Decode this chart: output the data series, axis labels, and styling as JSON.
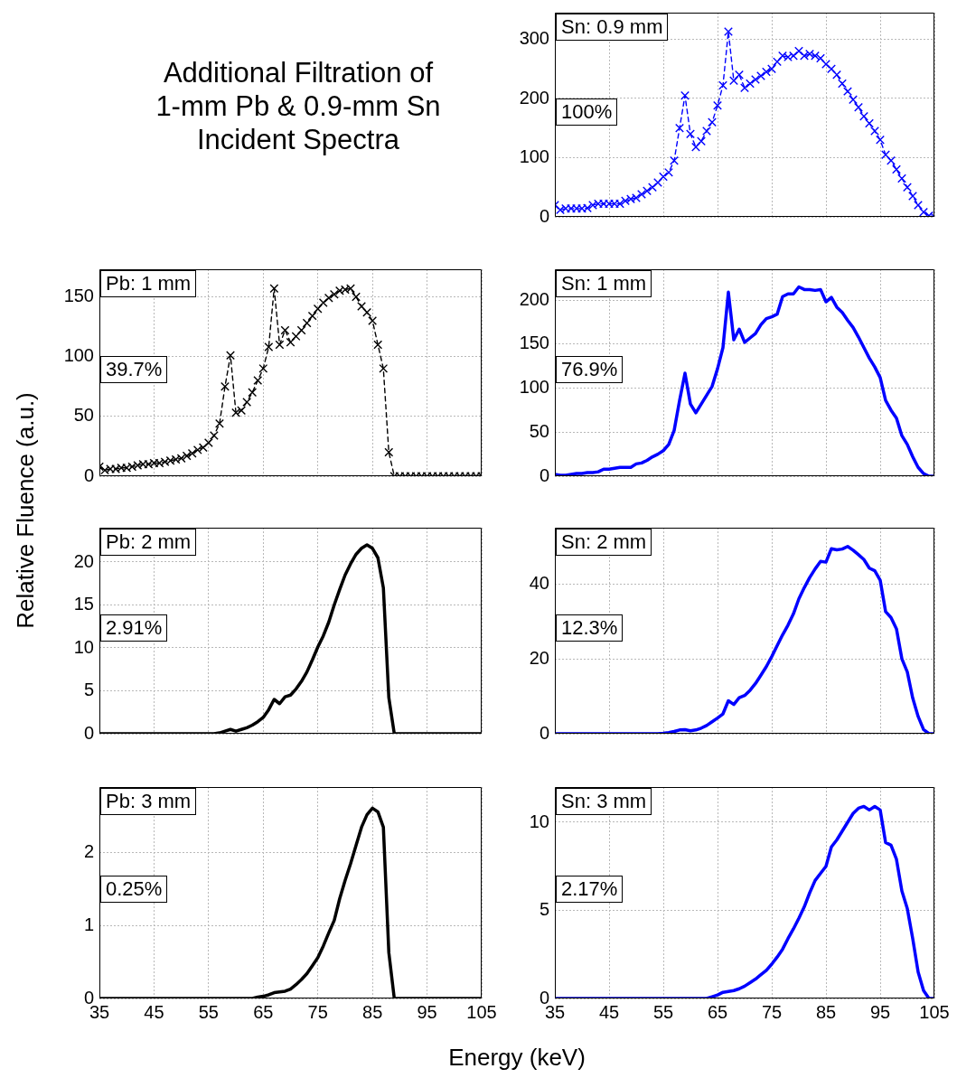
{
  "chart_data": [
    {
      "type": "other",
      "title": "Additional Filtration of\n1-mm Pb & 0.9-mm Sn\nIncident Spectra"
    },
    {
      "type": "line",
      "title": "Sn: 0.9 mm",
      "annotations": [
        "100%"
      ],
      "marker": "cross",
      "line_style": "dashed",
      "grid": true,
      "tick_labels": "y",
      "x": [
        35,
        36,
        37,
        38,
        39,
        40,
        41,
        42,
        43,
        44,
        45,
        46,
        47,
        48,
        49,
        50,
        51,
        52,
        53,
        54,
        55,
        56,
        57,
        58,
        59,
        60,
        61,
        62,
        63,
        64,
        65,
        66,
        67,
        68,
        69,
        70,
        71,
        72,
        73,
        74,
        75,
        76,
        77,
        78,
        79,
        80,
        81,
        82,
        83,
        84,
        85,
        86,
        87,
        88,
        89,
        90,
        91,
        92,
        93,
        94,
        95,
        96,
        97,
        98,
        99,
        100,
        101,
        102,
        103,
        104,
        105
      ],
      "series": [
        {
          "color": "#0000ff",
          "values": [
            20,
            12,
            14,
            14,
            14,
            14,
            15,
            20,
            22,
            22,
            22,
            22,
            22,
            27,
            30,
            32,
            38,
            44,
            50,
            58,
            68,
            75,
            95,
            150,
            205,
            140,
            118,
            128,
            145,
            160,
            188,
            222,
            313,
            230,
            240,
            218,
            225,
            232,
            238,
            245,
            250,
            262,
            272,
            270,
            272,
            280,
            272,
            275,
            272,
            268,
            258,
            250,
            240,
            225,
            212,
            198,
            185,
            170,
            158,
            145,
            130,
            105,
            95,
            80,
            65,
            50,
            35,
            20,
            8,
            2,
            0
          ]
        }
      ],
      "xlim": [
        35,
        105
      ],
      "xticks": [
        35,
        45,
        55,
        65,
        75,
        85,
        95,
        105
      ],
      "ylim": [
        0,
        345
      ],
      "yticks": [
        0,
        100,
        200,
        300
      ]
    },
    {
      "type": "line",
      "title": "Pb: 1 mm",
      "annotations": [
        "39.7%"
      ],
      "marker": "cross",
      "line_style": "dashed",
      "grid": true,
      "tick_labels": "y",
      "x": [
        35,
        36,
        37,
        38,
        39,
        40,
        41,
        42,
        43,
        44,
        45,
        46,
        47,
        48,
        49,
        50,
        51,
        52,
        53,
        54,
        55,
        56,
        57,
        58,
        59,
        60,
        61,
        62,
        63,
        64,
        65,
        66,
        67,
        68,
        69,
        70,
        71,
        72,
        73,
        74,
        75,
        76,
        77,
        78,
        79,
        80,
        81,
        82,
        83,
        84,
        85,
        86,
        87,
        88,
        89,
        90,
        91,
        92,
        93,
        94,
        95,
        96,
        97,
        98,
        99,
        100,
        101,
        102,
        103,
        104,
        105
      ],
      "series": [
        {
          "color": "#000000",
          "values": [
            8,
            5,
            6,
            6,
            7,
            7,
            8,
            9,
            10,
            10,
            11,
            11,
            12,
            13,
            14,
            15,
            17,
            19,
            22,
            24,
            28,
            34,
            44,
            75,
            101,
            53,
            55,
            62,
            70,
            80,
            90,
            108,
            157,
            110,
            122,
            112,
            117,
            122,
            128,
            134,
            140,
            145,
            149,
            152,
            155,
            156,
            157,
            150,
            142,
            137,
            130,
            110,
            90,
            20,
            0,
            0,
            0,
            0,
            0,
            0,
            0,
            0,
            0,
            0,
            0,
            0,
            0,
            0,
            0,
            0,
            0
          ]
        }
      ],
      "xlim": [
        35,
        105
      ],
      "xticks": [
        35,
        45,
        55,
        65,
        75,
        85,
        95,
        105
      ],
      "ylim": [
        0,
        173
      ],
      "yticks": [
        0,
        50,
        100,
        150
      ]
    },
    {
      "type": "line",
      "title": "Sn: 1 mm",
      "annotations": [
        "76.9%"
      ],
      "line_style": "solid",
      "grid": true,
      "tick_labels": "y",
      "x": [
        35,
        36,
        37,
        38,
        39,
        40,
        41,
        42,
        43,
        44,
        45,
        46,
        47,
        48,
        49,
        50,
        51,
        52,
        53,
        54,
        55,
        56,
        57,
        58,
        59,
        60,
        61,
        62,
        63,
        64,
        65,
        66,
        67,
        68,
        69,
        70,
        71,
        72,
        73,
        74,
        75,
        76,
        77,
        78,
        79,
        80,
        81,
        82,
        83,
        84,
        85,
        86,
        87,
        88,
        89,
        90,
        91,
        92,
        93,
        94,
        95,
        96,
        97,
        98,
        99,
        100,
        101,
        102,
        103,
        104,
        105
      ],
      "series": [
        {
          "color": "#0000ff",
          "values": [
            2,
            1,
            1,
            2,
            3,
            3,
            4,
            4,
            5,
            8,
            8,
            9,
            10,
            10,
            10,
            14,
            15,
            18,
            22,
            25,
            29,
            36,
            52,
            86,
            117,
            82,
            72,
            82,
            92,
            102,
            122,
            146,
            209,
            155,
            167,
            152,
            157,
            162,
            172,
            179,
            181,
            184,
            204,
            207,
            207,
            215,
            212,
            212,
            211,
            212,
            198,
            203,
            192,
            186,
            177,
            169,
            158,
            146,
            134,
            124,
            112,
            86,
            75,
            66,
            46,
            36,
            22,
            10,
            3,
            0,
            0
          ]
        }
      ],
      "xlim": [
        35,
        105
      ],
      "xticks": [
        35,
        45,
        55,
        65,
        75,
        85,
        95,
        105
      ],
      "ylim": [
        0,
        235
      ],
      "yticks": [
        0,
        50,
        100,
        150,
        200
      ]
    },
    {
      "type": "line",
      "title": "Pb: 2 mm",
      "annotations": [
        "2.91%"
      ],
      "ylabel": "Relative Fluence (a.u.)",
      "line_style": "solid",
      "grid": true,
      "tick_labels": "y",
      "x": [
        35,
        36,
        37,
        38,
        39,
        40,
        41,
        42,
        43,
        44,
        45,
        46,
        47,
        48,
        49,
        50,
        51,
        52,
        53,
        54,
        55,
        56,
        57,
        58,
        59,
        60,
        61,
        62,
        63,
        64,
        65,
        66,
        67,
        68,
        69,
        70,
        71,
        72,
        73,
        74,
        75,
        76,
        77,
        78,
        79,
        80,
        81,
        82,
        83,
        84,
        85,
        86,
        87,
        88,
        89,
        90,
        91,
        92,
        93,
        94,
        95,
        96,
        97,
        98,
        99,
        100,
        101,
        102,
        103,
        104,
        105
      ],
      "series": [
        {
          "color": "#000000",
          "values": [
            0,
            0,
            0,
            0,
            0,
            0,
            0,
            0,
            0,
            0,
            0,
            0,
            0,
            0,
            0,
            0,
            0,
            0,
            0,
            0,
            0,
            0,
            0.1,
            0.3,
            0.5,
            0.3,
            0.5,
            0.7,
            1.0,
            1.4,
            1.9,
            2.8,
            4.0,
            3.5,
            4.3,
            4.5,
            5.2,
            6.1,
            7.2,
            8.6,
            10.1,
            11.4,
            13,
            15,
            16.8,
            18.5,
            19.8,
            20.9,
            21.6,
            22,
            21.6,
            20.5,
            17,
            4.2,
            0,
            0,
            0,
            0,
            0,
            0,
            0,
            0,
            0,
            0,
            0,
            0,
            0,
            0,
            0,
            0,
            0
          ]
        }
      ],
      "xlim": [
        35,
        105
      ],
      "xticks": [
        35,
        45,
        55,
        65,
        75,
        85,
        95,
        105
      ],
      "ylim": [
        0,
        24
      ],
      "yticks": [
        0,
        5,
        10,
        15,
        20
      ]
    },
    {
      "type": "line",
      "title": "Sn: 2 mm",
      "annotations": [
        "12.3%"
      ],
      "line_style": "solid",
      "grid": true,
      "tick_labels": "y",
      "x": [
        35,
        36,
        37,
        38,
        39,
        40,
        41,
        42,
        43,
        44,
        45,
        46,
        47,
        48,
        49,
        50,
        51,
        52,
        53,
        54,
        55,
        56,
        57,
        58,
        59,
        60,
        61,
        62,
        63,
        64,
        65,
        66,
        67,
        68,
        69,
        70,
        71,
        72,
        73,
        74,
        75,
        76,
        77,
        78,
        79,
        80,
        81,
        82,
        83,
        84,
        85,
        86,
        87,
        88,
        89,
        90,
        91,
        92,
        93,
        94,
        95,
        96,
        97,
        98,
        99,
        100,
        101,
        102,
        103,
        104,
        105
      ],
      "series": [
        {
          "color": "#0000ff",
          "values": [
            0,
            0,
            0,
            0,
            0,
            0,
            0,
            0,
            0,
            0,
            0,
            0,
            0,
            0,
            0,
            0,
            0,
            0,
            0,
            0,
            0.1,
            0.3,
            0.6,
            1.0,
            1.1,
            0.8,
            1.0,
            1.5,
            2.2,
            3.2,
            4.2,
            5.3,
            8.8,
            7.8,
            9.6,
            10.2,
            11.6,
            13.4,
            15.6,
            17.9,
            20.6,
            23.5,
            26.4,
            29,
            32,
            36,
            39,
            41.7,
            44,
            46,
            45.8,
            49.4,
            49.1,
            49.3,
            50,
            49,
            47.8,
            46.5,
            44.2,
            43.5,
            41,
            32.6,
            31,
            28,
            20,
            16.5,
            9.5,
            4.6,
            1.1,
            0,
            0
          ]
        }
      ],
      "xlim": [
        35,
        105
      ],
      "xticks": [
        35,
        45,
        55,
        65,
        75,
        85,
        95,
        105
      ],
      "ylim": [
        0,
        55
      ],
      "yticks": [
        0,
        20,
        40
      ]
    },
    {
      "type": "line",
      "title": "Pb: 3 mm",
      "annotations": [
        "0.25%"
      ],
      "xlabel": "Energy (keV)",
      "line_style": "solid",
      "grid": true,
      "x": [
        35,
        36,
        37,
        38,
        39,
        40,
        41,
        42,
        43,
        44,
        45,
        46,
        47,
        48,
        49,
        50,
        51,
        52,
        53,
        54,
        55,
        56,
        57,
        58,
        59,
        60,
        61,
        62,
        63,
        64,
        65,
        66,
        67,
        68,
        69,
        70,
        71,
        72,
        73,
        74,
        75,
        76,
        77,
        78,
        79,
        80,
        81,
        82,
        83,
        84,
        85,
        86,
        87,
        88,
        89,
        90,
        91,
        92,
        93,
        94,
        95,
        96,
        97,
        98,
        99,
        100,
        101,
        102,
        103,
        104,
        105
      ],
      "series": [
        {
          "color": "#000000",
          "values": [
            0,
            0,
            0,
            0,
            0,
            0,
            0,
            0,
            0,
            0,
            0,
            0,
            0,
            0,
            0,
            0,
            0,
            0,
            0,
            0,
            0,
            0,
            0,
            0,
            0,
            0,
            0,
            0,
            0,
            0.02,
            0.03,
            0.05,
            0.08,
            0.09,
            0.1,
            0.13,
            0.19,
            0.26,
            0.34,
            0.45,
            0.56,
            0.72,
            0.9,
            1.07,
            1.37,
            1.62,
            1.85,
            2.1,
            2.35,
            2.52,
            2.61,
            2.56,
            2.35,
            0.63,
            0,
            0,
            0,
            0,
            0,
            0,
            0,
            0,
            0,
            0,
            0,
            0,
            0,
            0,
            0,
            0,
            0
          ]
        }
      ],
      "xlim": [
        35,
        105
      ],
      "xticks": [
        35,
        45,
        55,
        65,
        75,
        85,
        95,
        105
      ],
      "ylim": [
        0,
        2.9
      ],
      "yticks": [
        0,
        1,
        2
      ]
    },
    {
      "type": "line",
      "title": "Sn: 3 mm",
      "annotations": [
        "2.17%"
      ],
      "line_style": "solid",
      "grid": true,
      "x": [
        35,
        36,
        37,
        38,
        39,
        40,
        41,
        42,
        43,
        44,
        45,
        46,
        47,
        48,
        49,
        50,
        51,
        52,
        53,
        54,
        55,
        56,
        57,
        58,
        59,
        60,
        61,
        62,
        63,
        64,
        65,
        66,
        67,
        68,
        69,
        70,
        71,
        72,
        73,
        74,
        75,
        76,
        77,
        78,
        79,
        80,
        81,
        82,
        83,
        84,
        85,
        86,
        87,
        88,
        89,
        90,
        91,
        92,
        93,
        94,
        95,
        96,
        97,
        98,
        99,
        100,
        101,
        102,
        103,
        104,
        105
      ],
      "series": [
        {
          "color": "#0000ff",
          "values": [
            0,
            0,
            0,
            0,
            0,
            0,
            0,
            0,
            0,
            0,
            0,
            0,
            0,
            0,
            0,
            0,
            0,
            0,
            0,
            0,
            0,
            0,
            0,
            0,
            0,
            0,
            0,
            0,
            0,
            0.1,
            0.2,
            0.35,
            0.4,
            0.45,
            0.55,
            0.7,
            0.9,
            1.1,
            1.35,
            1.6,
            1.95,
            2.35,
            2.8,
            3.4,
            3.95,
            4.55,
            5.2,
            6,
            6.7,
            7.1,
            7.5,
            8.6,
            9.0,
            9.5,
            10,
            10.5,
            10.8,
            10.9,
            10.7,
            10.9,
            10.7,
            8.85,
            8.7,
            7.9,
            6.1,
            5.1,
            3.4,
            1.5,
            0.45,
            0,
            0
          ]
        }
      ],
      "xlim": [
        35,
        105
      ],
      "xticks": [
        35,
        45,
        55,
        65,
        75,
        85,
        95,
        105
      ],
      "ylim": [
        0,
        12
      ],
      "yticks": [
        0,
        5,
        10
      ]
    }
  ]
}
